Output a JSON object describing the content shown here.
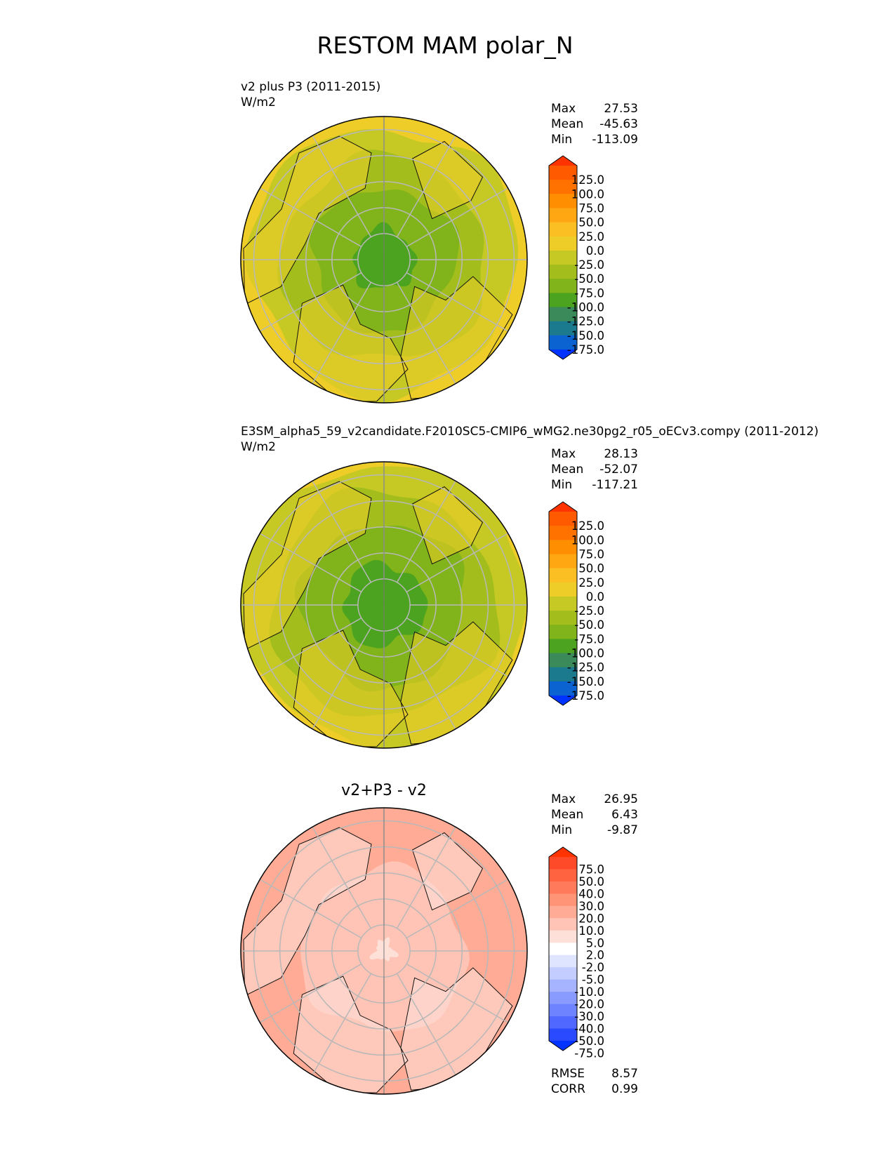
{
  "figure": {
    "title": "RESTOM MAM polar_N"
  },
  "panels": [
    {
      "id": "test",
      "title": "",
      "subtitle": "v2 plus P3 (2011-2015)",
      "units": "W/m2",
      "stats": {
        "labels": [
          "Max",
          "Mean",
          "Min"
        ],
        "values": [
          "27.53",
          "-45.63",
          "-113.09"
        ]
      },
      "colorbar": {
        "ticks": [
          "125.0",
          "100.0",
          "75.0",
          "50.0",
          "25.0",
          "0.0",
          "-25.0",
          "-50.0",
          "-75.0",
          "-100.0",
          "-125.0",
          "-150.0",
          "-175.0"
        ],
        "colors": [
          "#ff3300",
          "#ff5a00",
          "#ff7200",
          "#ff8f00",
          "#ffa613",
          "#fbbf23",
          "#efcd28",
          "#c6c824",
          "#a3be1c",
          "#80b41a",
          "#4ba31f",
          "#3a8a5a",
          "#1b7a8e",
          "#0a63d0",
          "#0033ff"
        ]
      },
      "field": {
        "pole": -118,
        "mid": -70,
        "edge": -5,
        "land": -18
      }
    },
    {
      "id": "reference",
      "title": "",
      "subtitle": "E3SM_alpha5_59_v2candidate.F2010SC5-CMIP6_wMG2.ne30pg2_r05_oECv3.compy (2011-2012)",
      "units": "W/m2",
      "stats": {
        "labels": [
          "Max",
          "Mean",
          "Min"
        ],
        "values": [
          "28.13",
          "-52.07",
          "-117.21"
        ]
      },
      "colorbar": {
        "ticks": [
          "125.0",
          "100.0",
          "75.0",
          "50.0",
          "25.0",
          "0.0",
          "-25.0",
          "-50.0",
          "-75.0",
          "-100.0",
          "-125.0",
          "-150.0",
          "-175.0"
        ],
        "colors": [
          "#ff3300",
          "#ff5a00",
          "#ff7200",
          "#ff8f00",
          "#ffa613",
          "#fbbf23",
          "#efcd28",
          "#c6c824",
          "#a3be1c",
          "#80b41a",
          "#4ba31f",
          "#3a8a5a",
          "#1b7a8e",
          "#0a63d0",
          "#0033ff"
        ]
      },
      "field": {
        "pole": -124,
        "mid": -80,
        "edge": -8,
        "land": -20
      }
    },
    {
      "id": "difference",
      "title": "v2+P3 - v2",
      "subtitle": "",
      "units": "",
      "stats": {
        "labels": [
          "Max",
          "Mean",
          "Min"
        ],
        "values": [
          "26.95",
          "6.43",
          "-9.87"
        ]
      },
      "colorbar": {
        "ticks": [
          "75.0",
          "50.0",
          "40.0",
          "30.0",
          "20.0",
          "10.0",
          "5.0",
          "2.0",
          "-2.0",
          "-5.0",
          "-10.0",
          "-20.0",
          "-30.0",
          "-40.0",
          "-50.0",
          "-75.0"
        ],
        "colors": [
          "#ff3300",
          "#ff4a2a",
          "#ff6340",
          "#ff7a5a",
          "#ff9477",
          "#ffab95",
          "#ffc4b5",
          "#fde0d8",
          "#ffffff",
          "#dfe4ff",
          "#c3cdff",
          "#a6b4ff",
          "#8a9bff",
          "#6d83ff",
          "#5068ff",
          "#2a4aff",
          "#0033ff"
        ]
      },
      "extra_stats": {
        "labels": [
          "RMSE",
          "CORR"
        ],
        "values": [
          "8.57",
          "0.99"
        ]
      },
      "field": {
        "pole": 4,
        "mid": 10,
        "edge": 14,
        "land": 3
      }
    }
  ]
}
